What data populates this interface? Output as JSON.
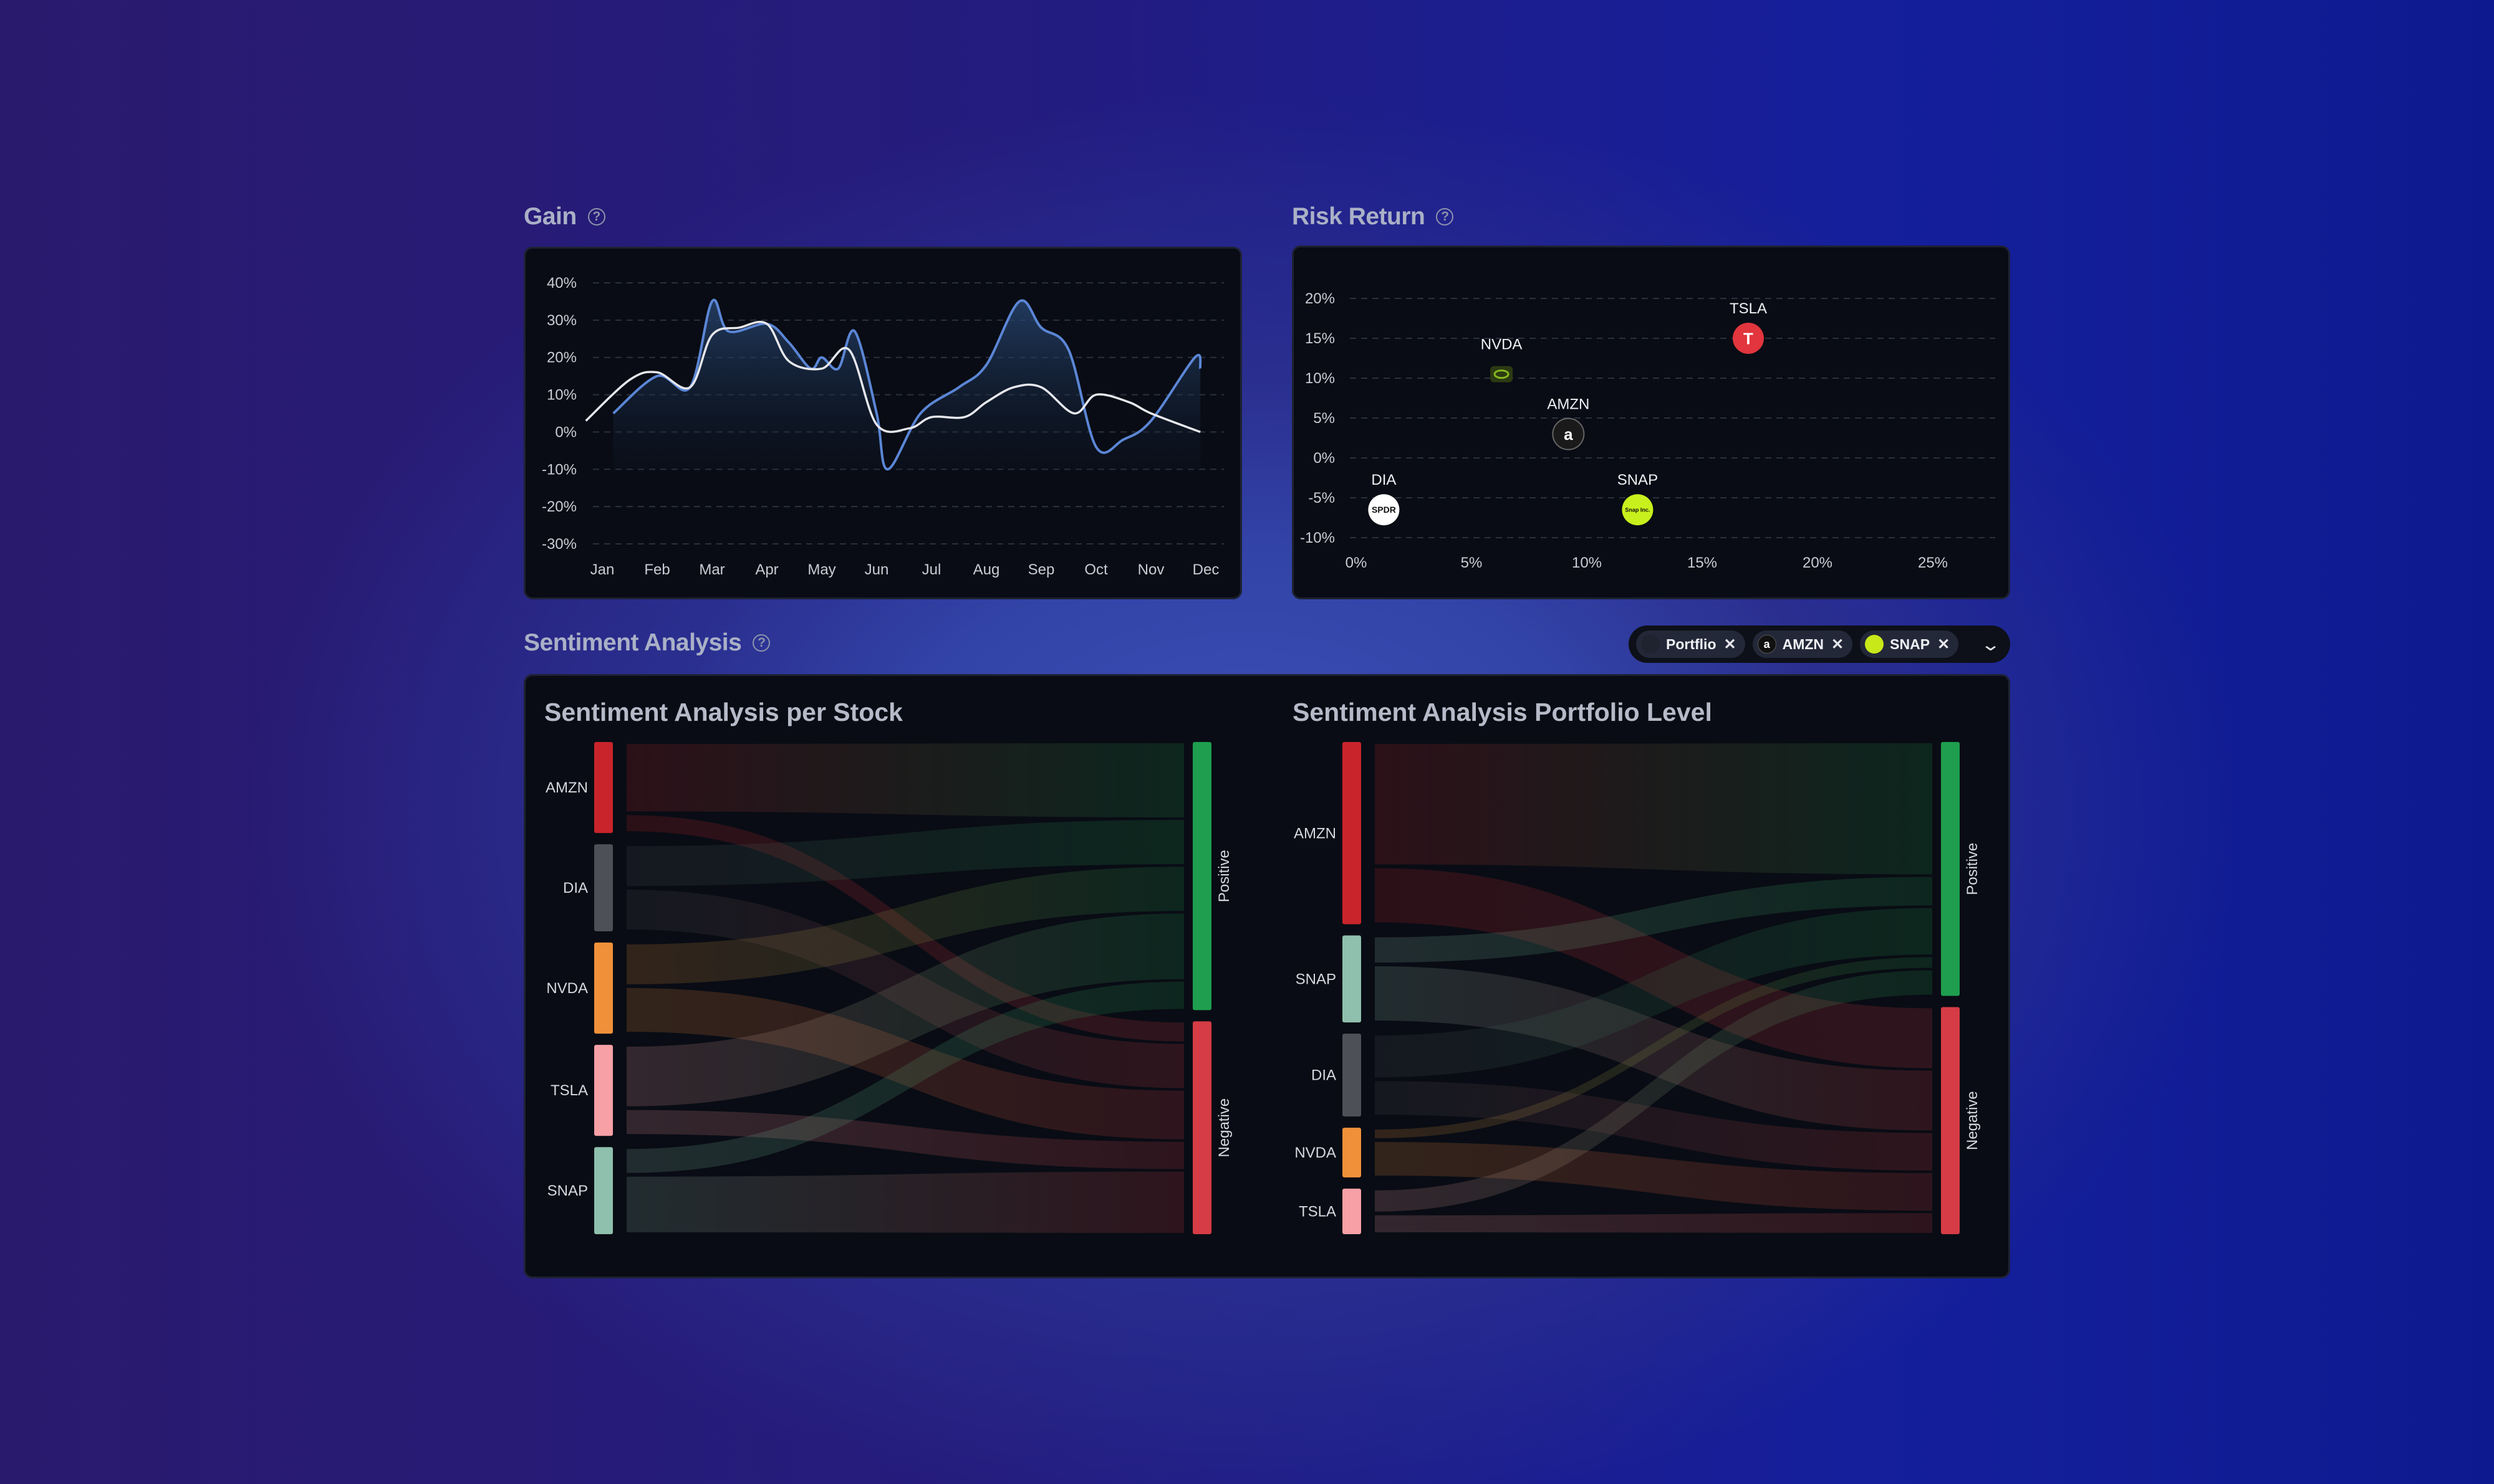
{
  "sections": {
    "gain": "Gain",
    "risk_return": "Risk Return",
    "sentiment": "Sentiment Analysis"
  },
  "help_glyph": "?",
  "filters": {
    "chips": [
      {
        "label": "Portflio",
        "icon": "portfolio-icon",
        "icon_color": "#1f2330"
      },
      {
        "label": "AMZN",
        "icon": "amazon-logo-icon",
        "icon_text": "a",
        "icon_color": "#111111"
      },
      {
        "label": "SNAP",
        "icon": "snap-logo-icon",
        "icon_color": "#c8e81a"
      }
    ],
    "remove_glyph": "✕",
    "dropdown_glyph": "⌄"
  },
  "colors": {
    "accent_line": "#5b86d6",
    "portfolio_line": "#e6e7ec",
    "positive": "#1e9e4e",
    "negative": "#d63c45",
    "amzn": "#c9242b",
    "dia": "#4d5056",
    "nvda": "#f0913a",
    "tsla": "#f7a0a6",
    "snap": "#8fc0ad"
  },
  "chart_data": [
    {
      "type": "line",
      "title": "Gain",
      "categories": [
        "Jan",
        "Feb",
        "Mar",
        "Apr",
        "May",
        "Jun",
        "Jul",
        "Aug",
        "Sep",
        "Oct",
        "Nov",
        "Dec"
      ],
      "y_ticks": [
        "40%",
        "30%",
        "20%",
        "10%",
        "0%",
        "-10%",
        "-20%",
        "-30%"
      ],
      "ylim": [
        -30,
        40
      ],
      "grid": true,
      "series": [
        {
          "values": [
            [
              0.2,
              5
            ],
            [
              1,
              15
            ],
            [
              1.6,
              12
            ],
            [
              2,
              35
            ],
            [
              2.3,
              27
            ],
            [
              3,
              29
            ],
            [
              3.4,
              24
            ],
            [
              3.8,
              17
            ],
            [
              4,
              20
            ],
            [
              4.3,
              17
            ],
            [
              4.6,
              27
            ],
            [
              5,
              5
            ],
            [
              5.2,
              -10
            ],
            [
              5.8,
              5
            ],
            [
              6.5,
              12
            ],
            [
              7,
              18
            ],
            [
              7.6,
              35
            ],
            [
              8,
              28
            ],
            [
              8.5,
              22
            ],
            [
              9,
              -4
            ],
            [
              9.5,
              -2
            ],
            [
              10,
              3
            ],
            [
              10.8,
              20
            ],
            [
              10.9,
              17
            ]
          ]
        },
        {
          "values": [
            [
              -0.3,
              3
            ],
            [
              0.5,
              14
            ],
            [
              1,
              16
            ],
            [
              1.6,
              12
            ],
            [
              2,
              26
            ],
            [
              2.5,
              28
            ],
            [
              3,
              29
            ],
            [
              3.4,
              19
            ],
            [
              4,
              17
            ],
            [
              4.5,
              22
            ],
            [
              5,
              2
            ],
            [
              5.6,
              1
            ],
            [
              6,
              4
            ],
            [
              6.6,
              4
            ],
            [
              7,
              8
            ],
            [
              7.5,
              12
            ],
            [
              8,
              12
            ],
            [
              8.6,
              5
            ],
            [
              9,
              10
            ],
            [
              9.6,
              8
            ],
            [
              10,
              5
            ],
            [
              10.9,
              0
            ]
          ]
        }
      ]
    },
    {
      "type": "scatter",
      "title": "Risk Return",
      "x_ticks": [
        "0%",
        "5%",
        "10%",
        "15%",
        "20%",
        "25%"
      ],
      "y_ticks": [
        "20%",
        "15%",
        "10%",
        "5%",
        "0%",
        "-5%",
        "-10%"
      ],
      "xlim": [
        0,
        28
      ],
      "ylim": [
        -10,
        20
      ],
      "grid": true,
      "points": [
        {
          "label": "TSLA",
          "x": 17,
          "y": 15,
          "color": "#e2353d",
          "icon": "tesla-logo-icon",
          "icon_text": "T"
        },
        {
          "label": "NVDA",
          "x": 6.3,
          "y": 10.5,
          "color": "#2c3a12",
          "icon": "nvidia-logo-icon",
          "icon_text": ""
        },
        {
          "label": "AMZN",
          "x": 9.2,
          "y": 3,
          "color": "#1a1a1a",
          "icon": "amazon-logo-icon",
          "icon_text": "a"
        },
        {
          "label": "DIA",
          "x": 1.2,
          "y": -6.5,
          "color": "#ffffff",
          "icon": "dia-logo-icon",
          "icon_text": "SPDR"
        },
        {
          "label": "SNAP",
          "x": 12.2,
          "y": -6.5,
          "color": "#c8f01c",
          "icon": "snap-logo-icon",
          "icon_text": "Snap Inc."
        }
      ]
    },
    {
      "type": "sankey",
      "title": "Sentiment Analysis per Stock",
      "sources": [
        "AMZN",
        "DIA",
        "NVDA",
        "TSLA",
        "SNAP"
      ],
      "targets": [
        "Positive",
        "Negative"
      ],
      "links": [
        {
          "source": "AMZN",
          "target": "Positive",
          "value": 18
        },
        {
          "source": "AMZN",
          "target": "Negative",
          "value": 5
        },
        {
          "source": "DIA",
          "target": "Positive",
          "value": 11
        },
        {
          "source": "DIA",
          "target": "Negative",
          "value": 11
        },
        {
          "source": "NVDA",
          "target": "Positive",
          "value": 11
        },
        {
          "source": "NVDA",
          "target": "Negative",
          "value": 12
        },
        {
          "source": "TSLA",
          "target": "Positive",
          "value": 16
        },
        {
          "source": "TSLA",
          "target": "Negative",
          "value": 7
        },
        {
          "source": "SNAP",
          "target": "Positive",
          "value": 7
        },
        {
          "source": "SNAP",
          "target": "Negative",
          "value": 15
        }
      ]
    },
    {
      "type": "sankey",
      "title": "Sentiment Analysis Portfolio Level",
      "sources": [
        "AMZN",
        "SNAP",
        "DIA",
        "NVDA",
        "TSLA"
      ],
      "targets": [
        "Positive",
        "Negative"
      ],
      "links": [
        {
          "source": "AMZN",
          "target": "Positive",
          "value": 30
        },
        {
          "source": "AMZN",
          "target": "Negative",
          "value": 14
        },
        {
          "source": "SNAP",
          "target": "Positive",
          "value": 7
        },
        {
          "source": "SNAP",
          "target": "Negative",
          "value": 14
        },
        {
          "source": "DIA",
          "target": "Positive",
          "value": 11
        },
        {
          "source": "DIA",
          "target": "Negative",
          "value": 9
        },
        {
          "source": "NVDA",
          "target": "Positive",
          "value": 3
        },
        {
          "source": "NVDA",
          "target": "Negative",
          "value": 9
        },
        {
          "source": "TSLA",
          "target": "Positive",
          "value": 6
        },
        {
          "source": "TSLA",
          "target": "Negative",
          "value": 5
        }
      ]
    }
  ]
}
